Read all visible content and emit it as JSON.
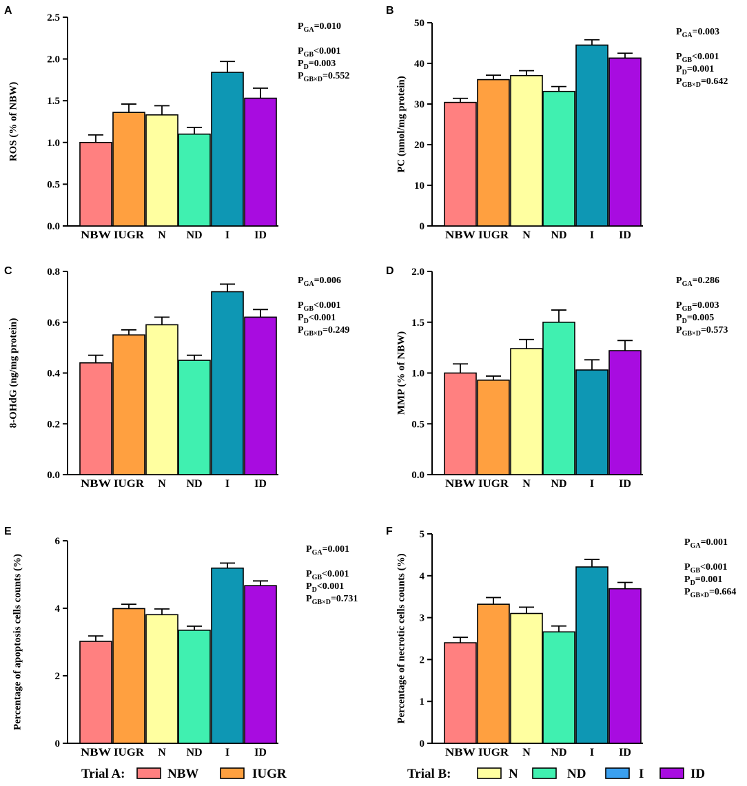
{
  "colors": {
    "NBW": "#FF8080",
    "IUGR": "#FFA040",
    "N": "#FFFFA0",
    "ND": "#40F0B0",
    "I": "#0E97B4",
    "ID": "#A80CE0",
    "legend_I": "#3AA0F0",
    "axis": "#000000"
  },
  "chart_data": [
    {
      "panel": "A",
      "type": "bar",
      "ylabel": "ROS (% of NBW)",
      "categories": [
        "NBW",
        "IUGR",
        "N",
        "ND",
        "I",
        "ID"
      ],
      "values": [
        1.0,
        1.36,
        1.33,
        1.1,
        1.84,
        1.53
      ],
      "errors": [
        0.09,
        0.1,
        0.11,
        0.08,
        0.13,
        0.12
      ],
      "ylim": [
        0,
        2.5
      ],
      "yticks": [
        "0.0",
        "0.5",
        "1.0",
        "1.5",
        "2.0",
        "2.5"
      ],
      "stats": [
        {
          "sub": "GA",
          "text": "=0.010"
        },
        {
          "sub": "GB",
          "text": "<0.001"
        },
        {
          "sub": "D",
          "text": "=0.003"
        },
        {
          "sub": "GB×D",
          "text": "=0.552"
        }
      ]
    },
    {
      "panel": "B",
      "type": "bar",
      "ylabel": "PC (nmol/mg protein)",
      "categories": [
        "NBW",
        "IUGR",
        "N",
        "ND",
        "I",
        "ID"
      ],
      "values": [
        30.4,
        36.0,
        37.0,
        33.1,
        44.5,
        41.3
      ],
      "errors": [
        1.0,
        1.1,
        1.2,
        1.2,
        1.3,
        1.2
      ],
      "ylim": [
        0,
        50
      ],
      "yticks": [
        "0",
        "10",
        "20",
        "30",
        "40",
        "50"
      ],
      "stats": [
        {
          "sub": "GA",
          "text": "=0.003"
        },
        {
          "sub": "GB",
          "text": "<0.001"
        },
        {
          "sub": "D",
          "text": "=0.001"
        },
        {
          "sub": "GB×D",
          "text": "=0.642"
        }
      ]
    },
    {
      "panel": "C",
      "type": "bar",
      "ylabel": "8-OHdG (ng/mg protein)",
      "categories": [
        "NBW",
        "IUGR",
        "N",
        "ND",
        "I",
        "ID"
      ],
      "values": [
        0.44,
        0.55,
        0.59,
        0.45,
        0.72,
        0.62
      ],
      "errors": [
        0.03,
        0.02,
        0.03,
        0.02,
        0.03,
        0.03
      ],
      "ylim": [
        0,
        0.8
      ],
      "yticks": [
        "0.0",
        "0.2",
        "0.4",
        "0.6",
        "0.8"
      ],
      "stats": [
        {
          "sub": "GA",
          "text": "=0.006"
        },
        {
          "sub": "GB",
          "text": "<0.001"
        },
        {
          "sub": "D",
          "text": "<0.001"
        },
        {
          "sub": "GB×D",
          "text": "=0.249"
        }
      ]
    },
    {
      "panel": "D",
      "type": "bar",
      "ylabel": "MMP (% of NBW)",
      "categories": [
        "NBW",
        "IUGR",
        "N",
        "ND",
        "I",
        "ID"
      ],
      "values": [
        1.0,
        0.93,
        1.24,
        1.5,
        1.03,
        1.22
      ],
      "errors": [
        0.09,
        0.04,
        0.09,
        0.12,
        0.1,
        0.1
      ],
      "ylim": [
        0,
        2.0
      ],
      "yticks": [
        "0.0",
        "0.5",
        "1.0",
        "1.5",
        "2.0"
      ],
      "stats": [
        {
          "sub": "GA",
          "text": "=0.286"
        },
        {
          "sub": "GB",
          "text": "=0.003"
        },
        {
          "sub": "D",
          "text": "=0.005"
        },
        {
          "sub": "GB×D",
          "text": "=0.573"
        }
      ]
    },
    {
      "panel": "E",
      "type": "bar",
      "ylabel": "Percentage of apoptosis cells counts (%)",
      "categories": [
        "NBW",
        "IUGR",
        "N",
        "ND",
        "I",
        "ID"
      ],
      "values": [
        3.02,
        3.99,
        3.81,
        3.35,
        5.19,
        4.67
      ],
      "errors": [
        0.16,
        0.13,
        0.17,
        0.12,
        0.15,
        0.14
      ],
      "ylim": [
        0,
        6
      ],
      "yticks": [
        "0",
        "2",
        "4",
        "6"
      ],
      "stats": [
        {
          "sub": "GA",
          "text": "=0.001"
        },
        {
          "sub": "GB",
          "text": "<0.001"
        },
        {
          "sub": "D",
          "text": "<0.001"
        },
        {
          "sub": "GB×D",
          "text": "=0.731"
        }
      ]
    },
    {
      "panel": "F",
      "type": "bar",
      "ylabel": "Percentage of  necrotic cells counts (%)",
      "categories": [
        "NBW",
        "IUGR",
        "N",
        "ND",
        "I",
        "ID"
      ],
      "values": [
        2.4,
        3.32,
        3.1,
        2.66,
        4.21,
        3.69
      ],
      "errors": [
        0.13,
        0.16,
        0.15,
        0.14,
        0.18,
        0.15
      ],
      "ylim": [
        0,
        5
      ],
      "yticks": [
        "0",
        "1",
        "2",
        "3",
        "4",
        "5"
      ],
      "stats": [
        {
          "sub": "GA",
          "text": "=0.001"
        },
        {
          "sub": "GB",
          "text": "<0.001"
        },
        {
          "sub": "D",
          "text": "=0.001"
        },
        {
          "sub": "GB×D",
          "text": "=0.664"
        }
      ]
    }
  ],
  "legend": {
    "trial_a": {
      "title": "Trial A:",
      "items": [
        "NBW",
        "IUGR"
      ]
    },
    "trial_b": {
      "title": "Trial B:",
      "items": [
        "N",
        "ND",
        "I",
        "ID"
      ]
    }
  }
}
